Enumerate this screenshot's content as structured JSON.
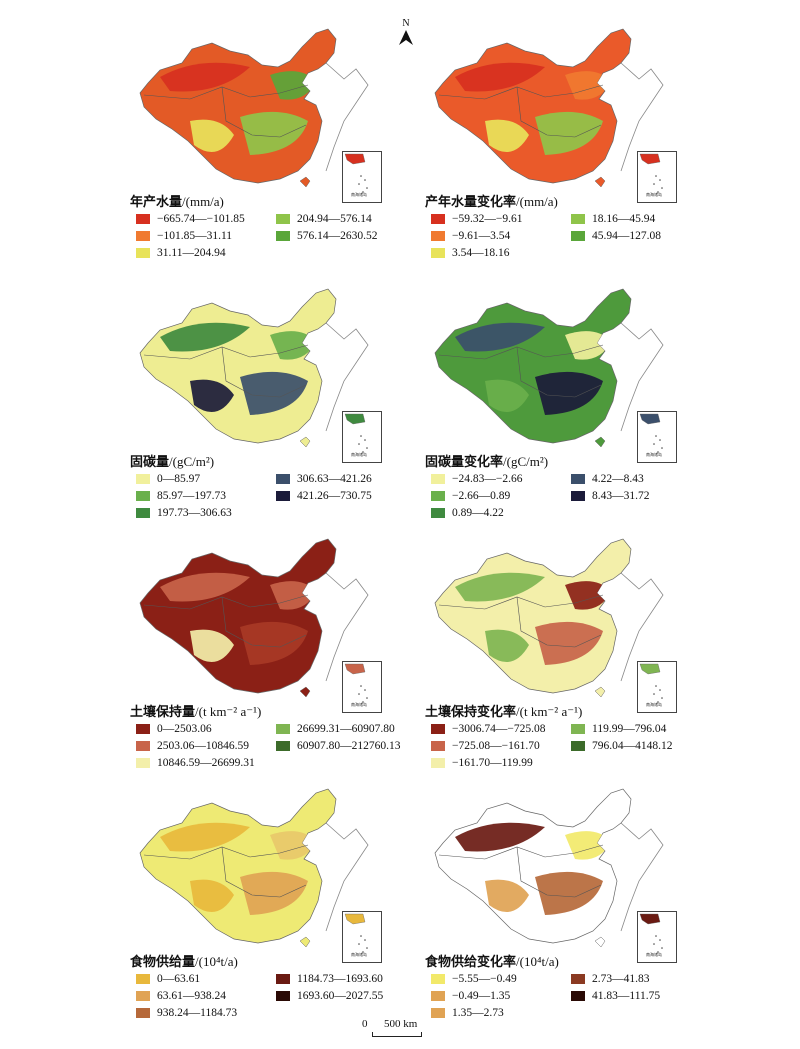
{
  "north_label": "N",
  "scale": {
    "zero": "0",
    "label": "500 km"
  },
  "inset_label": "南海诸岛",
  "colors": {
    "red": "#d7301f",
    "orange": "#f07a30",
    "yellow": "#e8e35a",
    "lightgreen": "#8fc44a",
    "green": "#5aa63a",
    "cream": "#f1f09c",
    "midgreen": "#6ab04c",
    "darkgreen": "#3f8a3f",
    "slate": "#3b4f6b",
    "navy": "#1b1b3a",
    "maroon": "#8b2016",
    "rust": "#c8644a",
    "paleyellow": "#f3efaa",
    "ygreen": "#7fb552",
    "forest": "#3c6b2a",
    "gold": "#e8b83c",
    "tan": "#e0a354",
    "brown": "#b6693a",
    "dbrown": "#6a1a12",
    "vdbrown": "#2a0a05"
  },
  "panels": [
    {
      "title": "年产水量",
      "unit": "/(mm/a)",
      "base": "#e35a26",
      "patches": [
        "#d7301f",
        "#8fc44a",
        "#e8e35a",
        "#5aa63a"
      ],
      "legend": [
        {
          "label": "−665.74—−101.85",
          "color": "#d7301f"
        },
        {
          "label": "−101.85—31.11",
          "color": "#f07a30"
        },
        {
          "label": "31.11—204.94",
          "color": "#e8e35a"
        },
        {
          "label": "204.94—576.14",
          "color": "#8fc44a"
        },
        {
          "label": "576.14—2630.52",
          "color": "#5aa63a"
        }
      ]
    },
    {
      "title": "产年水量变化率",
      "unit": "/(mm/a)",
      "base": "#ea5a2a",
      "patches": [
        "#d7301f",
        "#8fc44a",
        "#e8e35a",
        "#f07a30"
      ],
      "legend": [
        {
          "label": "−59.32—−9.61",
          "color": "#d7301f"
        },
        {
          "label": "−9.61—3.54",
          "color": "#f07a30"
        },
        {
          "label": "3.54—18.16",
          "color": "#e8e35a"
        },
        {
          "label": "18.16—45.94",
          "color": "#8fc44a"
        },
        {
          "label": "45.94—127.08",
          "color": "#5aa63a"
        }
      ]
    },
    {
      "title": "固碳量",
      "unit": "/(gC/m²)",
      "base": "#eeed92",
      "patches": [
        "#3f8a3f",
        "#3b4f6b",
        "#1b1b3a",
        "#6ab04c"
      ],
      "legend": [
        {
          "label": "0—85.97",
          "color": "#f1f09c"
        },
        {
          "label": "85.97—197.73",
          "color": "#6ab04c"
        },
        {
          "label": "197.73—306.63",
          "color": "#3f8a3f"
        },
        {
          "label": "306.63—421.26",
          "color": "#3b4f6b"
        },
        {
          "label": "421.26—730.75",
          "color": "#1b1b3a"
        }
      ]
    },
    {
      "title": "固碳量变化率",
      "unit": "/(gC/m²)",
      "base": "#4e9a3c",
      "patches": [
        "#3b4f6b",
        "#1b1b3a",
        "#6ab04c",
        "#f1f09c"
      ],
      "legend": [
        {
          "label": "−24.83—−2.66",
          "color": "#f1f09c"
        },
        {
          "label": "−2.66—0.89",
          "color": "#6ab04c"
        },
        {
          "label": "0.89—4.22",
          "color": "#3f8a3f"
        },
        {
          "label": "4.22—8.43",
          "color": "#3b4f6b"
        },
        {
          "label": "8.43—31.72",
          "color": "#1b1b3a"
        }
      ]
    },
    {
      "title": "土壤保持量",
      "unit": "/(t km⁻² a⁻¹)",
      "base": "#8b2016",
      "patches": [
        "#c8644a",
        "#a83a26",
        "#f3efaa",
        "#c8644a"
      ],
      "legend": [
        {
          "label": "0—2503.06",
          "color": "#8b2016"
        },
        {
          "label": "2503.06—10846.59",
          "color": "#c8644a"
        },
        {
          "label": "10846.59—26699.31",
          "color": "#f3efaa"
        },
        {
          "label": "26699.31—60907.80",
          "color": "#7fb552"
        },
        {
          "label": "60907.80—212760.13",
          "color": "#3c6b2a"
        }
      ]
    },
    {
      "title": "土壤保持变化率",
      "unit": "/(t km⁻² a⁻¹)",
      "base": "#f3efaa",
      "patches": [
        "#7fb552",
        "#c8644a",
        "#7fb552",
        "#8b2016"
      ],
      "legend": [
        {
          "label": "−3006.74—−725.08",
          "color": "#8b2016"
        },
        {
          "label": "−725.08—−161.70",
          "color": "#c8644a"
        },
        {
          "label": "−161.70—119.99",
          "color": "#f3efaa"
        },
        {
          "label": "119.99—796.04",
          "color": "#7fb552"
        },
        {
          "label": "796.04—4148.12",
          "color": "#3c6b2a"
        }
      ]
    },
    {
      "title": "食物供给量",
      "unit": "/(10⁴t/a)",
      "base": "#eeea74",
      "patches": [
        "#e8b83c",
        "#e0a354",
        "#e8b83c",
        "#e8c86a"
      ],
      "legend": [
        {
          "label": "0—63.61",
          "color": "#e8b83c"
        },
        {
          "label": "63.61—938.24",
          "color": "#e0a354"
        },
        {
          "label": "938.24—1184.73",
          "color": "#b6693a"
        },
        {
          "label": "1184.73—1693.60",
          "color": "#6a1a12"
        },
        {
          "label": "1693.60—2027.55",
          "color": "#2a0a05"
        }
      ]
    },
    {
      "title": "食物供给变化率",
      "unit": "/(10⁴t/a)",
      "base": "#ffffff",
      "patches": [
        "#6a1a12",
        "#b6693a",
        "#e0a354",
        "#f2e96a"
      ],
      "legend": [
        {
          "label": "−5.55—−0.49",
          "color": "#f2e96a"
        },
        {
          "label": "−0.49—1.35",
          "color": "#e0a354"
        },
        {
          "label": "1.35—2.73",
          "color": "#e0a354"
        },
        {
          "label": "2.73—41.83",
          "color": "#8b3a22"
        },
        {
          "label": "41.83—111.75",
          "color": "#2a0a05"
        }
      ]
    }
  ]
}
